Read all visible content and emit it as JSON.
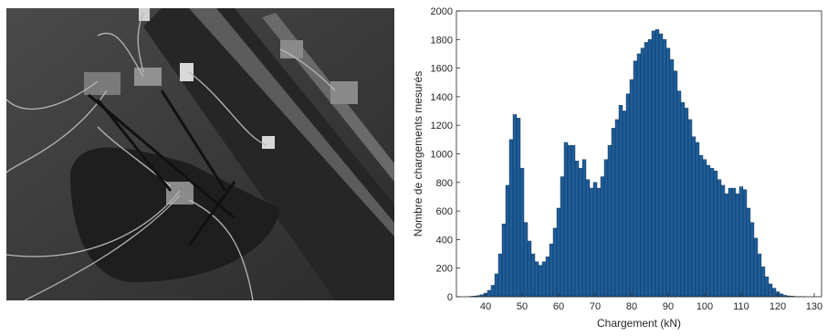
{
  "photo": {
    "description_icon": "sensor-rig-photo"
  },
  "chart_data": {
    "type": "bar",
    "xlabel": "Chargement (kN)",
    "ylabel": "Nombre de chargements mesurés",
    "xlim": [
      32,
      132
    ],
    "ylim": [
      0,
      2000
    ],
    "xticks": [
      40,
      50,
      60,
      70,
      80,
      90,
      100,
      110,
      120,
      130
    ],
    "yticks": [
      0,
      200,
      400,
      600,
      800,
      1000,
      1200,
      1400,
      1600,
      1800,
      2000
    ],
    "bar_color": "#1f5d99",
    "bin_width": 1,
    "x": [
      36,
      37,
      38,
      39,
      40,
      41,
      42,
      43,
      44,
      45,
      46,
      47,
      48,
      49,
      50,
      51,
      52,
      53,
      54,
      55,
      56,
      57,
      58,
      59,
      60,
      61,
      62,
      63,
      64,
      65,
      66,
      67,
      68,
      69,
      70,
      71,
      72,
      73,
      74,
      75,
      76,
      77,
      78,
      79,
      80,
      81,
      82,
      83,
      84,
      85,
      86,
      87,
      88,
      89,
      90,
      91,
      92,
      93,
      94,
      95,
      96,
      97,
      98,
      99,
      100,
      101,
      102,
      103,
      104,
      105,
      106,
      107,
      107,
      108,
      109,
      110,
      111,
      112,
      113,
      114,
      115,
      116,
      117,
      118,
      119,
      120,
      121,
      122,
      123,
      124,
      125,
      126,
      127
    ],
    "values": [
      3,
      5,
      8,
      15,
      25,
      45,
      80,
      160,
      300,
      510,
      780,
      1100,
      1275,
      1250,
      900,
      520,
      390,
      300,
      245,
      220,
      245,
      280,
      370,
      480,
      620,
      840,
      1080,
      1060,
      1060,
      950,
      900,
      960,
      820,
      760,
      800,
      760,
      840,
      960,
      1060,
      1180,
      1240,
      1340,
      1300,
      1420,
      1520,
      1650,
      1700,
      1740,
      1780,
      1800,
      1860,
      1870,
      1840,
      1800,
      1740,
      1660,
      1580,
      1440,
      1360,
      1320,
      1240,
      1120,
      1080,
      990,
      960,
      920,
      900,
      880,
      820,
      780,
      720,
      760,
      760,
      720,
      770,
      750,
      620,
      520,
      410,
      300,
      210,
      140,
      90,
      60,
      35,
      20,
      10,
      6,
      4,
      2,
      1,
      1,
      0
    ]
  }
}
